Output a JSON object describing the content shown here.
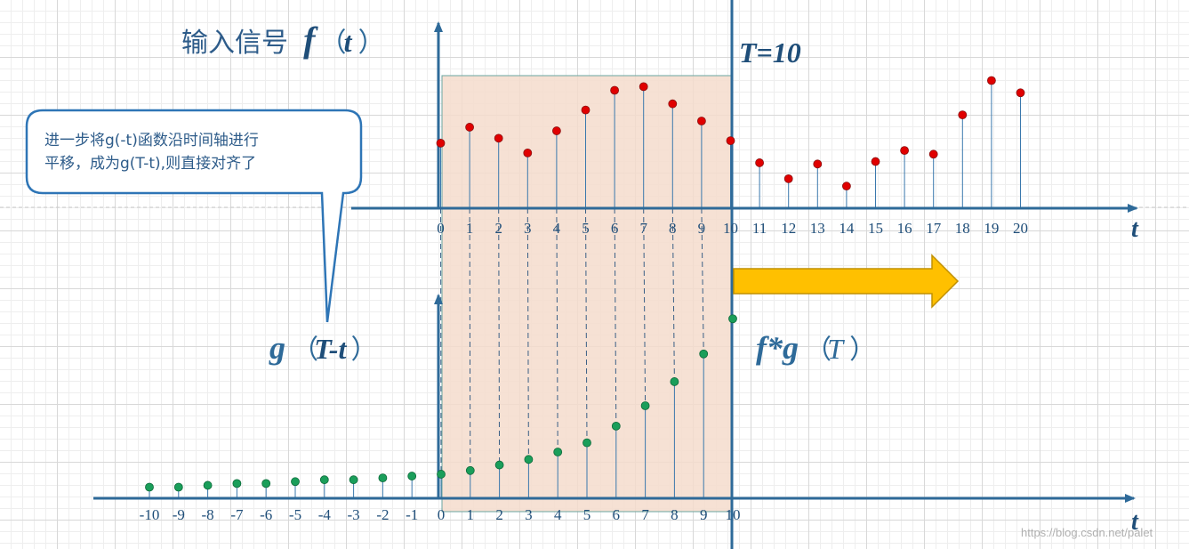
{
  "title": {
    "text": "输入信号",
    "f": "f",
    "open": "（",
    "t": "t",
    "close": "）"
  },
  "T_label": "T=10",
  "g_label": {
    "g": "g",
    "open": "（",
    "inner": "T-t",
    "close": "）"
  },
  "conv_label": {
    "fg": "f*g",
    "open": "（",
    "T": "T",
    "close": "）"
  },
  "callout": {
    "line1": "进一步将g(-t)函数沿时间轴进行",
    "line2": "平移，成为g(T-t),则直接对齐了"
  },
  "top_axis": {
    "var": "t",
    "ticks": [
      "0",
      "1",
      "2",
      "3",
      "4",
      "5",
      "6",
      "7",
      "8",
      "9",
      "10",
      "11",
      "12",
      "13",
      "14",
      "15",
      "16",
      "17",
      "18",
      "19",
      "20"
    ]
  },
  "bottom_axis": {
    "var": "t",
    "ticks": [
      "-10",
      "-9",
      "-8",
      "-7",
      "-6",
      "-5",
      "-4",
      "-3",
      "-2",
      "-1",
      "0",
      "1",
      "2",
      "3",
      "4",
      "5",
      "6",
      "7",
      "8",
      "9",
      "10"
    ]
  },
  "watermark": "https://blog.csdn.net/palet",
  "chart_data": [
    {
      "type": "scatter",
      "name": "f(t)",
      "x": [
        0,
        1,
        2,
        3,
        4,
        5,
        6,
        7,
        8,
        9,
        10,
        11,
        12,
        13,
        14,
        15,
        16,
        17,
        18,
        19,
        20
      ],
      "y": [
        0.53,
        0.66,
        0.57,
        0.45,
        0.63,
        0.8,
        0.96,
        0.99,
        0.85,
        0.71,
        0.55,
        0.37,
        0.24,
        0.36,
        0.18,
        0.38,
        0.47,
        0.44,
        0.76,
        1.04,
        0.94
      ]
    },
    {
      "type": "scatter",
      "name": "g(T-t)",
      "x": [
        -10,
        -9,
        -8,
        -7,
        -6,
        -5,
        -4,
        -3,
        -2,
        -1,
        0,
        1,
        2,
        3,
        4,
        5,
        6,
        7,
        8,
        9,
        10
      ],
      "y": [
        0.06,
        0.06,
        0.07,
        0.08,
        0.08,
        0.09,
        0.1,
        0.1,
        0.11,
        0.12,
        0.13,
        0.15,
        0.18,
        0.21,
        0.25,
        0.3,
        0.39,
        0.5,
        0.63,
        0.78,
        0.97
      ]
    }
  ],
  "colors": {
    "axis": "#2e6a99",
    "f_points": "#e00000",
    "g_points": "#1a9e5a",
    "window_fill": "#f4dccd",
    "arrow": "#ffc000",
    "arrow_stroke": "#c09000"
  }
}
